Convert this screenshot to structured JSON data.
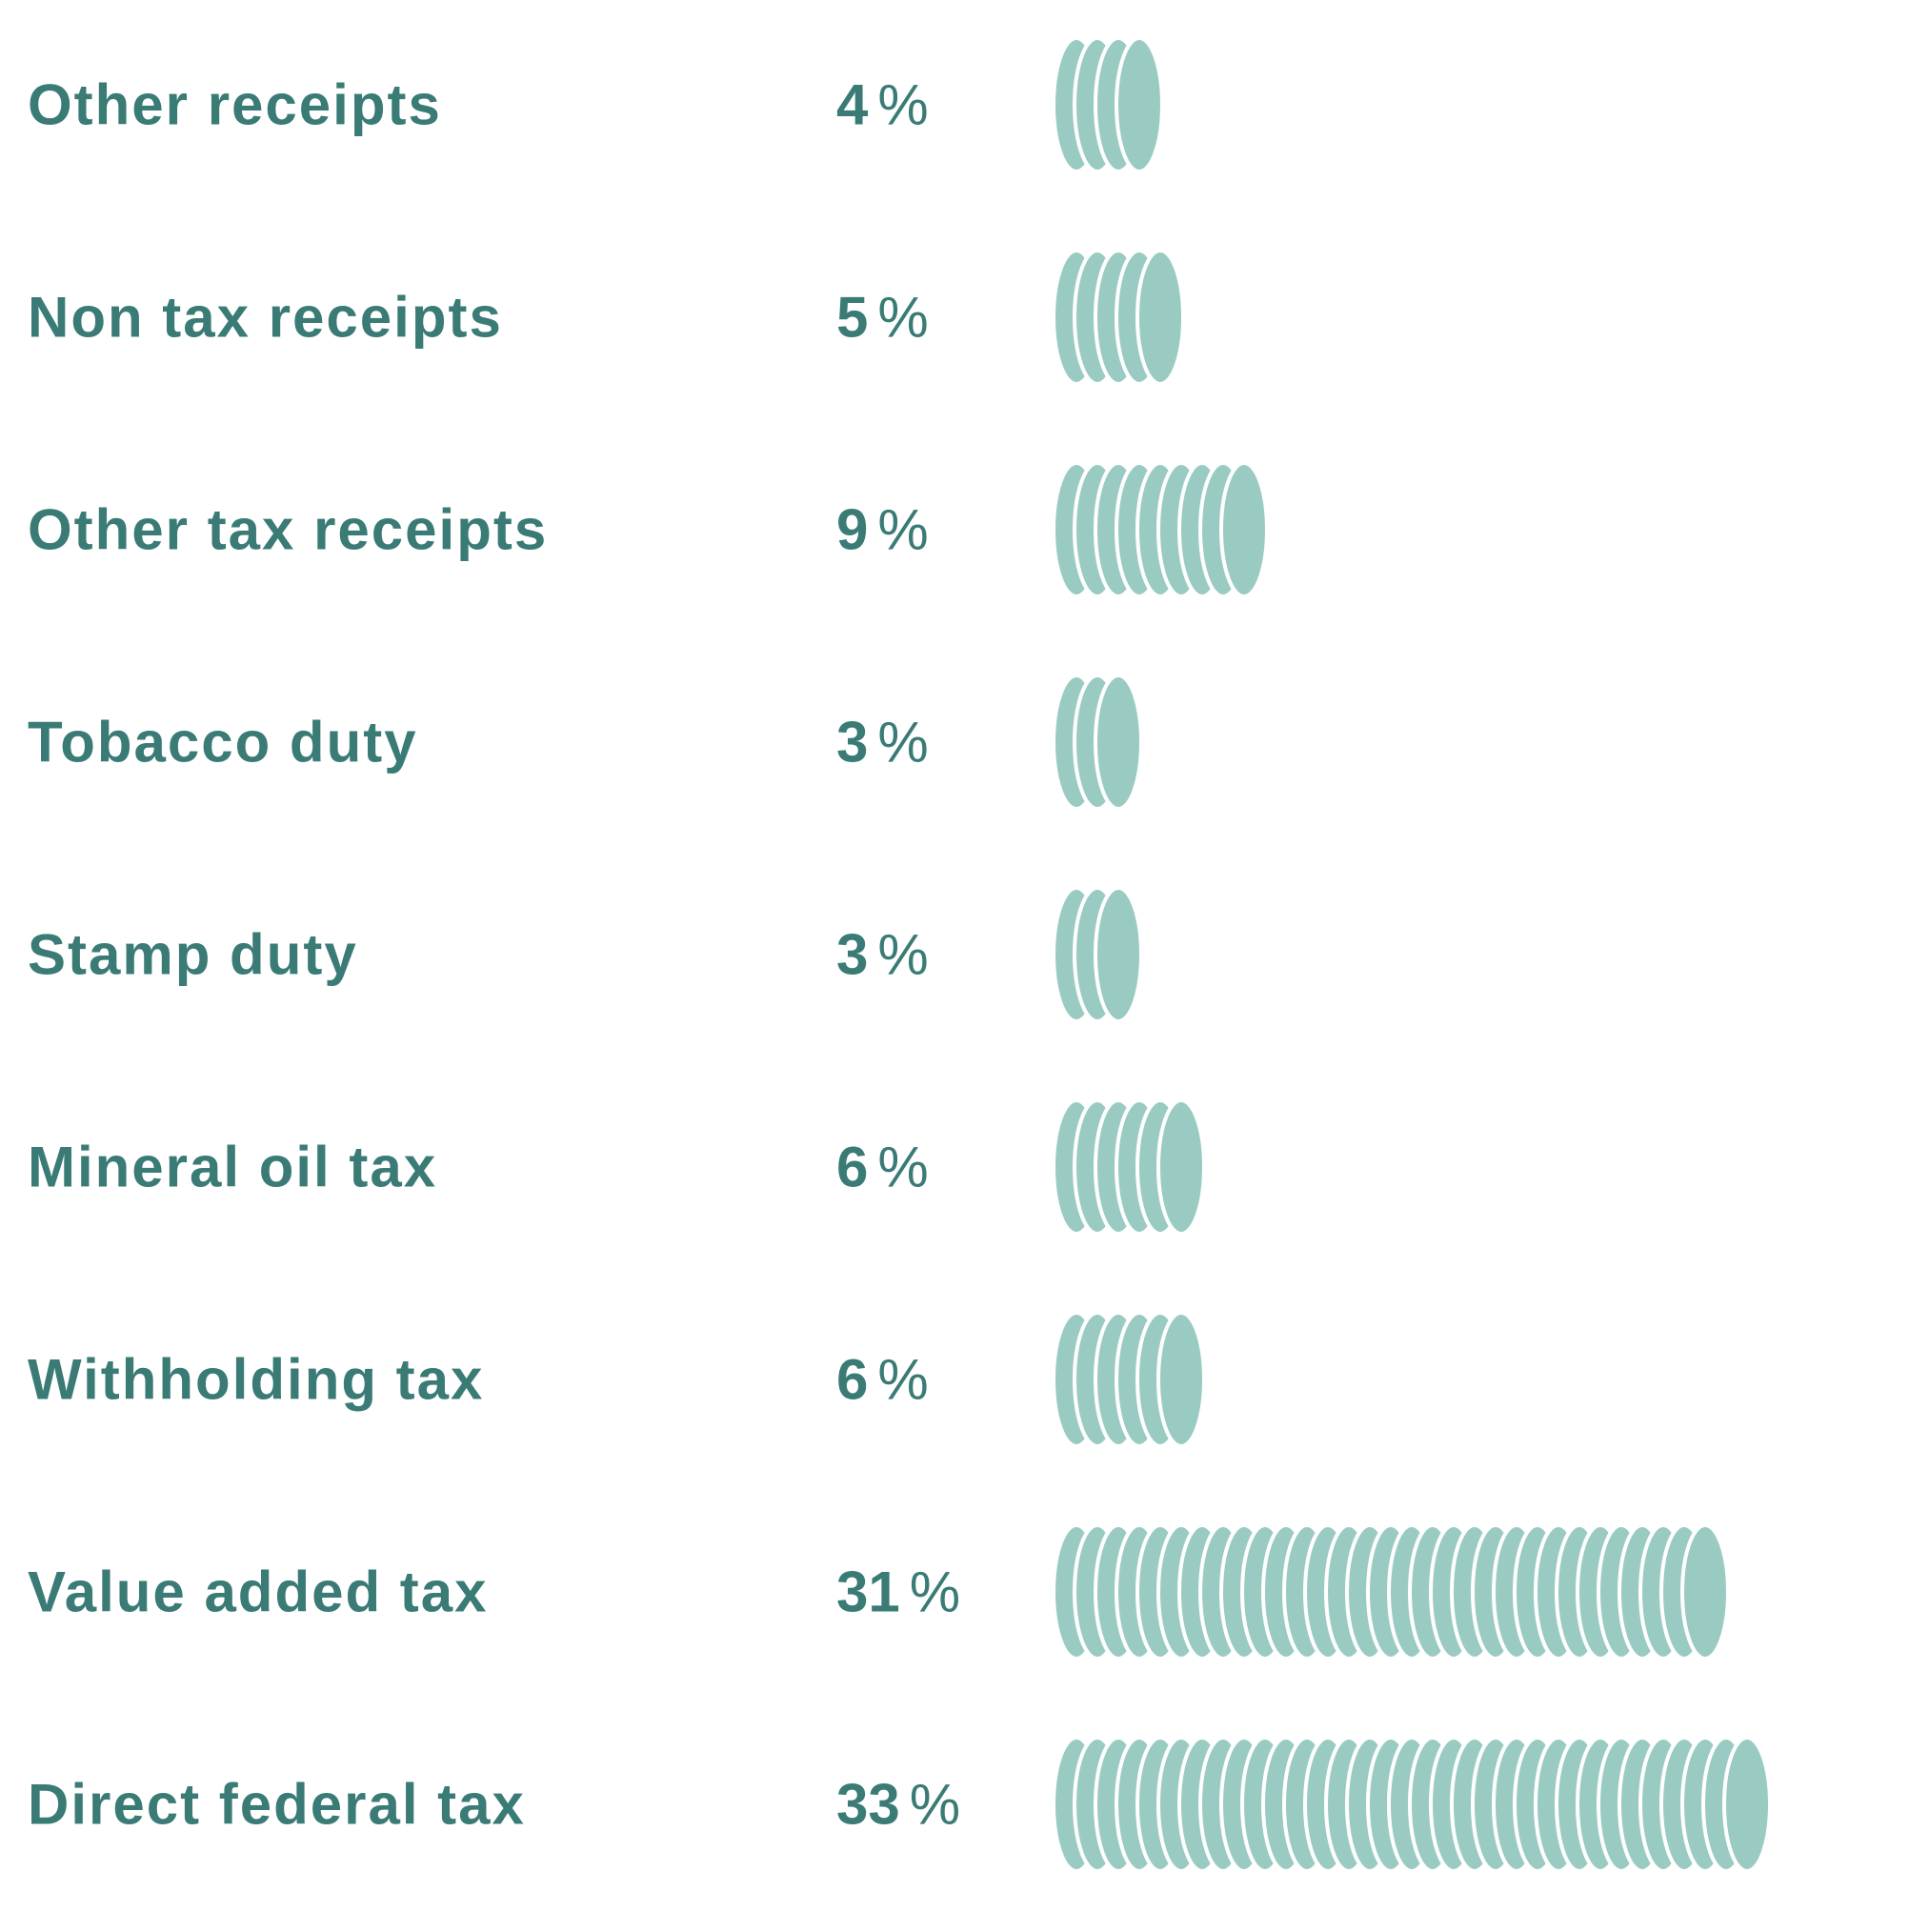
{
  "chart_data": {
    "type": "bar",
    "title": "",
    "xlabel": "",
    "ylabel": "",
    "unit": "%",
    "orientation": "horizontal",
    "mark": "coin-stack",
    "categories": [
      "Other receipts",
      "Non tax receipts",
      "Other tax receipts",
      "Tobacco duty",
      "Stamp duty",
      "Mineral oil tax",
      "Withholding tax",
      "Value added tax",
      "Direct federal tax"
    ],
    "values": [
      4,
      5,
      9,
      3,
      3,
      6,
      6,
      31,
      33
    ],
    "value_labels": [
      "4",
      "5",
      "9",
      "3",
      "3",
      "6",
      "6",
      "31",
      "33"
    ],
    "percent_sign": "%",
    "legend": "none",
    "grid": false
  },
  "colors": {
    "text": "#3a7b76",
    "coin": "#9acbc3",
    "coin_edge": "#ffffff"
  }
}
